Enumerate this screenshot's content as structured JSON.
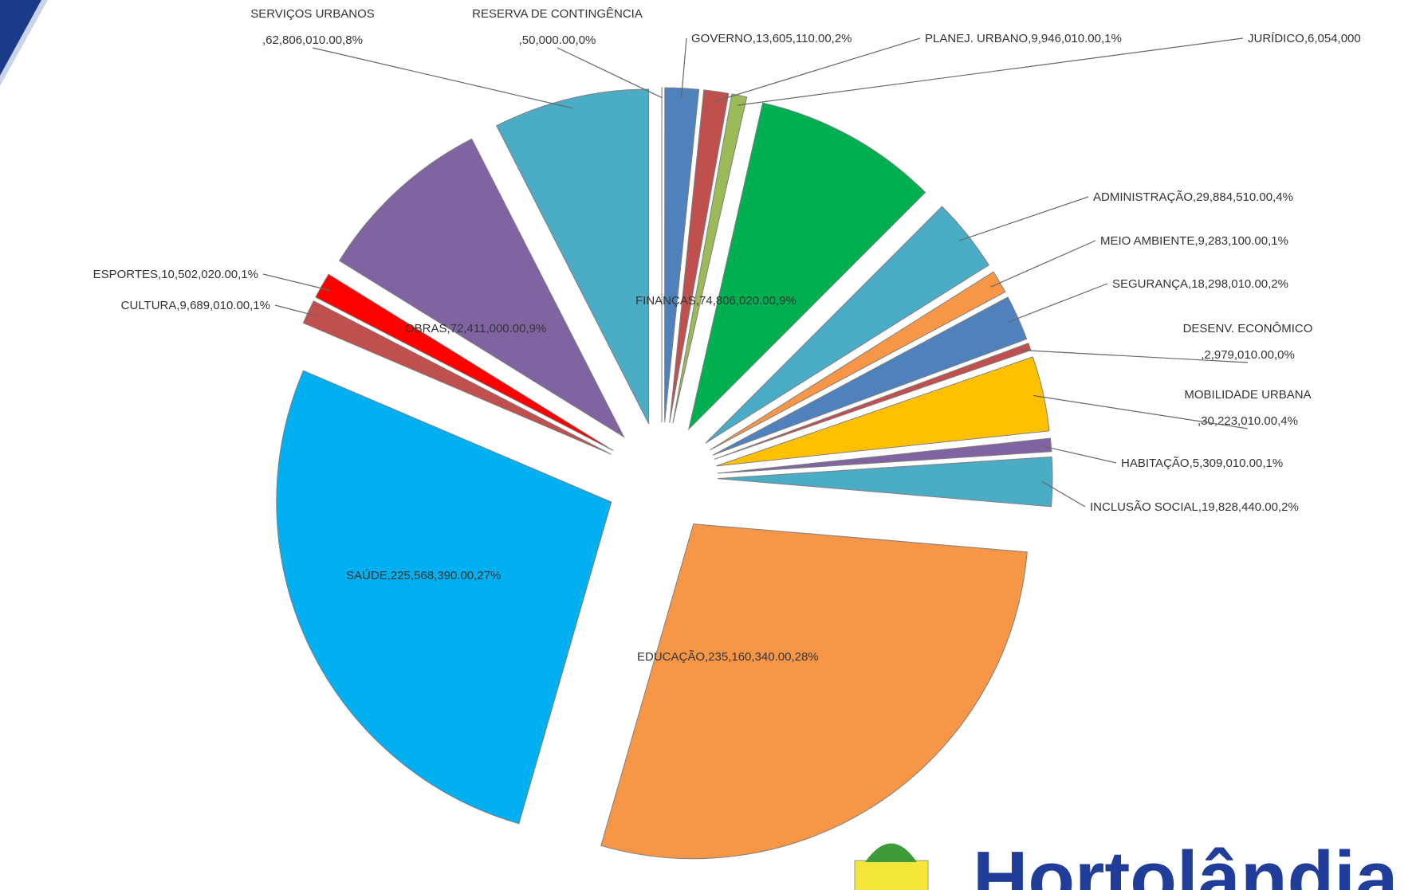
{
  "chart_data": {
    "type": "pie",
    "exploded": true,
    "categories": [
      "RESERVA DE CONTINGÊNCIA",
      "GOVERNO",
      "PLANEJ. URBANO",
      "JURÍDICO",
      "FINANÇAS",
      "ADMINISTRAÇÃO",
      "MEIO AMBIENTE",
      "SEGURANÇA",
      "DESENV. ECONÔMICO",
      "MOBILIDADE URBANA",
      "HABITAÇÃO",
      "INCLUSÃO SOCIAL",
      "EDUCAÇÃO",
      "SAÚDE",
      "CULTURA",
      "ESPORTES",
      "OBRAS",
      "SERVIÇOS URBANOS"
    ],
    "values": [
      50000,
      13605110,
      9946010,
      6054000,
      74806020,
      29884510,
      9283100,
      18298010,
      2979010,
      30223010,
      5309010,
      19828440,
      235160340,
      225568390,
      9689010,
      10502020,
      72411000,
      62806010
    ],
    "value_labels": [
      ",50,000.00,0%",
      ",13,605,110.00,2%",
      ",9,946,010.00,1%",
      ",6,054,000",
      ",74,806,020.00,9%",
      ",29,884,510.00,4%",
      ",9,283,100.00,1%",
      ",18,298,010.00,2%",
      ",2,979,010.00,0%",
      ",30,223,010.00,4%",
      ",5,309,010.00,1%",
      ",19,828,440.00,2%",
      ",235,160,340.00,28%",
      ",225,568,390.00,27%",
      ",9,689,010.00,1%",
      ",10,502,020.00,1%",
      ",72,411,000.00,9%",
      ",62,806,010.00,8%"
    ],
    "colors": [
      "#f2f2f2",
      "#4f81bd",
      "#c0504d",
      "#9bbb59",
      "#00b050",
      "#4bacc6",
      "#f79646",
      "#4f81bd",
      "#c0504d",
      "#ffc000",
      "#8064a2",
      "#4bacc6",
      "#f79646",
      "#00b0f0",
      "#c0504d",
      "#ff0000",
      "#8064a2",
      "#4bacc6"
    ]
  },
  "logo": "Hortolândia"
}
